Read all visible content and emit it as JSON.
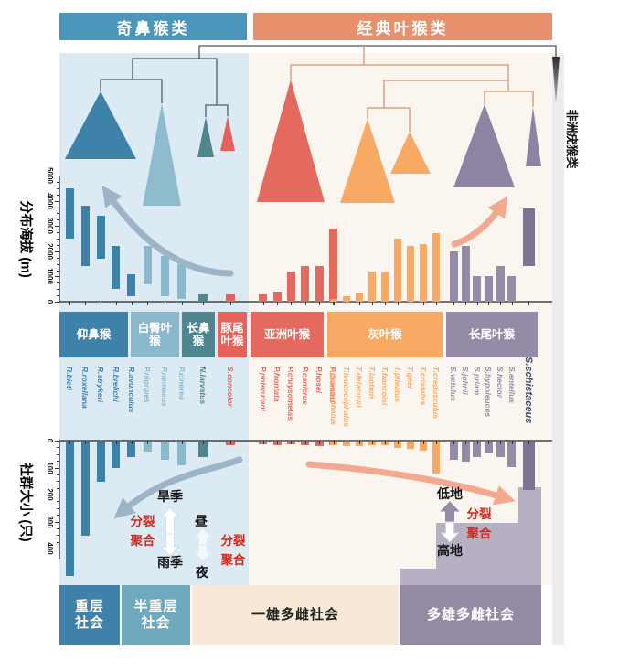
{
  "title_bars": {
    "left": "奇鼻猴类",
    "right": "经典叶猴类"
  },
  "side_label": "非洲疣猴类",
  "colors": {
    "annotation_red": "#d7281c",
    "arrow_blue": "#9db4c8",
    "arrow_salmon": "#f2a98f",
    "left_header": "#4b96bb",
    "right_header": "#e8906c",
    "schistaceus_text": "#3a4a6b",
    "schistaceus_bar": "#7b7492",
    "staircase": "#b7b0c2"
  },
  "annotations": {
    "fission": "分裂",
    "fusion": "聚合",
    "dry_season": "旱季",
    "rainy_season": "雨季",
    "day": "昼",
    "night": "夜",
    "lowland": "低地",
    "highland": "高地"
  },
  "social_bands": [
    {
      "label": "重层\n社会",
      "color": "#3e81a9",
      "text_color": "#ffffff"
    },
    {
      "label": "半重层\n社会",
      "color": "#6fa9bd",
      "text_color": "#ffffff"
    },
    {
      "label": "一雄多雌社会",
      "color": "#f8e8d7",
      "text_color": "#222222"
    },
    {
      "label": "多雄多雌社会",
      "color": "#948aa3",
      "text_color": "#ffffff"
    }
  ],
  "chart_data": {
    "type": "composite",
    "elevation_chart": {
      "type": "bar",
      "ylabel": "分布海拔 (m)",
      "ylim": [
        0,
        5000
      ],
      "yticks": [
        5000,
        4000,
        3000,
        2000,
        1000,
        0
      ],
      "note": "floating range bars, 0 at bottom axis"
    },
    "group_size_chart": {
      "type": "bar",
      "ylabel": "社群大小 (只)",
      "ylim": [
        0,
        400
      ],
      "yticks": [
        0,
        100,
        200,
        300,
        400
      ],
      "note": "bars hang downward from 0 at top axis"
    },
    "groups": [
      {
        "label": "仰鼻猴",
        "color": "#3e81a9",
        "species": [
          {
            "name": "R.bieti",
            "elevation": [
              2500,
              4500
            ],
            "group_size": 500
          },
          {
            "name": "R.roxellana",
            "elevation": [
              1400,
              3800
            ],
            "group_size": 350
          },
          {
            "name": "R.strykeri",
            "elevation": [
              1700,
              3400
            ],
            "group_size": 150
          },
          {
            "name": "R.brelichi",
            "elevation": [
              500,
              2200
            ],
            "group_size": 100
          },
          {
            "name": "R.avunculus",
            "elevation": [
              200,
              1100
            ],
            "group_size": 60
          }
        ]
      },
      {
        "label": "白臀叶\n猴",
        "color": "#8cb8cc",
        "species": [
          {
            "name": "P.nigripes",
            "elevation": [
              700,
              2200
            ],
            "group_size": 40
          },
          {
            "name": "P.nemaeus",
            "elevation": [
              200,
              1800
            ],
            "group_size": 70
          },
          {
            "name": "P.cinerea",
            "elevation": [
              100,
              1500
            ],
            "group_size": 90
          }
        ]
      },
      {
        "label": "长鼻\n猴",
        "color": "#4f858e",
        "species": [
          {
            "name": "N.larvatus",
            "elevation": [
              0,
              300
            ],
            "group_size": 60
          }
        ]
      },
      {
        "label": "豚尾\n叶猴",
        "color": "#e4625a",
        "species": [
          {
            "name": "S.concolor",
            "elevation": [
              0,
              300
            ],
            "group_size": 15
          }
        ]
      },
      {
        "label": "亚洲叶猴",
        "color": "#e4695e",
        "species": [
          {
            "name": "P.potenziani",
            "elevation": [
              0,
              300
            ],
            "group_size": 10
          },
          {
            "name": "P.frontata",
            "elevation": [
              0,
              400
            ],
            "group_size": 15
          },
          {
            "name": "P.chrysomelas",
            "elevation": [
              0,
              1200
            ],
            "group_size": 10
          },
          {
            "name": "P.canicrus",
            "elevation": [
              0,
              1400
            ],
            "group_size": 15
          },
          {
            "name": "P.hosei",
            "elevation": [
              0,
              1400
            ],
            "group_size": 20
          },
          {
            "name": "P.thomasi",
            "elevation": [
              0,
              2900
            ],
            "group_size": 15
          }
        ]
      },
      {
        "label": "灰叶猴",
        "color": "#f8a963",
        "species": [
          {
            "name": "T.poliocephalus",
            "elevation": [
              0,
              100
            ],
            "group_size": 15
          },
          {
            "name": "T.leucocephalus",
            "elevation": [
              0,
              200
            ],
            "group_size": 20
          },
          {
            "name": "T.delacouri",
            "elevation": [
              0,
              350
            ],
            "group_size": 20
          },
          {
            "name": "T.laotum",
            "elevation": [
              0,
              1200
            ],
            "group_size": 15
          },
          {
            "name": "T.francoisi",
            "elevation": [
              0,
              1200
            ],
            "group_size": 15
          },
          {
            "name": "T.pileatus",
            "elevation": [
              0,
              2500
            ],
            "group_size": 25
          },
          {
            "name": "T.geei",
            "elevation": [
              0,
              2200
            ],
            "group_size": 30
          },
          {
            "name": "T.cristatus",
            "elevation": [
              0,
              2300
            ],
            "group_size": 35
          },
          {
            "name": "T.crepusculus",
            "elevation": [
              0,
              2700
            ],
            "group_size": 120
          }
        ]
      },
      {
        "label": "长尾叶猴",
        "color": "#958ba6",
        "species": [
          {
            "name": "S.vetulus",
            "elevation": [
              0,
              2000
            ],
            "group_size": 70
          },
          {
            "name": "S.johnii",
            "elevation": [
              0,
              2200
            ],
            "group_size": 75
          },
          {
            "name": "S.priam",
            "elevation": [
              0,
              1000
            ],
            "group_size": 60
          },
          {
            "name": "S.hypoleucos",
            "elevation": [
              0,
              1000
            ],
            "group_size": 45
          },
          {
            "name": "S.hector",
            "elevation": [
              0,
              1400
            ],
            "group_size": 60
          },
          {
            "name": "S.entellus",
            "elevation": [
              0,
              1000
            ],
            "group_size": 95
          },
          {
            "name": "S.schistaceus",
            "elevation": [
              1400,
              3700
            ],
            "group_size": 180,
            "emphasis": true
          }
        ]
      }
    ]
  }
}
